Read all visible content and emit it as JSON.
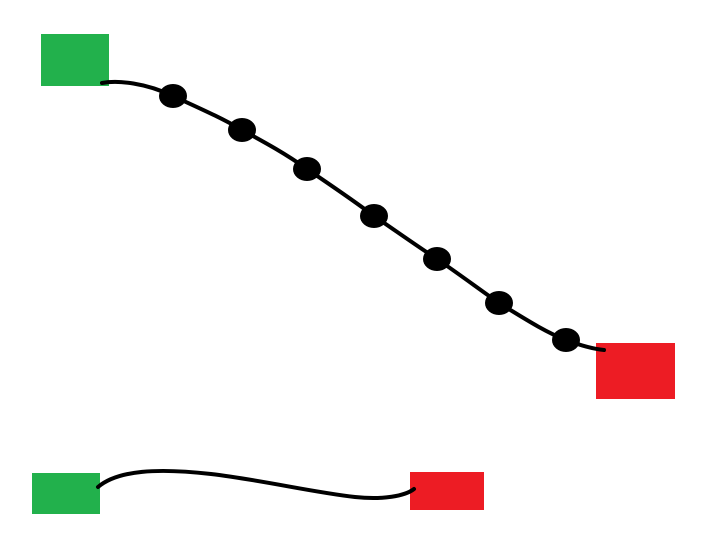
{
  "diagram": {
    "colors": {
      "background": "#ffffff",
      "start": "#22b14c",
      "end": "#ed1c24",
      "path": "#000000"
    },
    "top_path": {
      "waypoint_count": 7
    },
    "bottom_path": {
      "waypoint_count": 0
    }
  }
}
